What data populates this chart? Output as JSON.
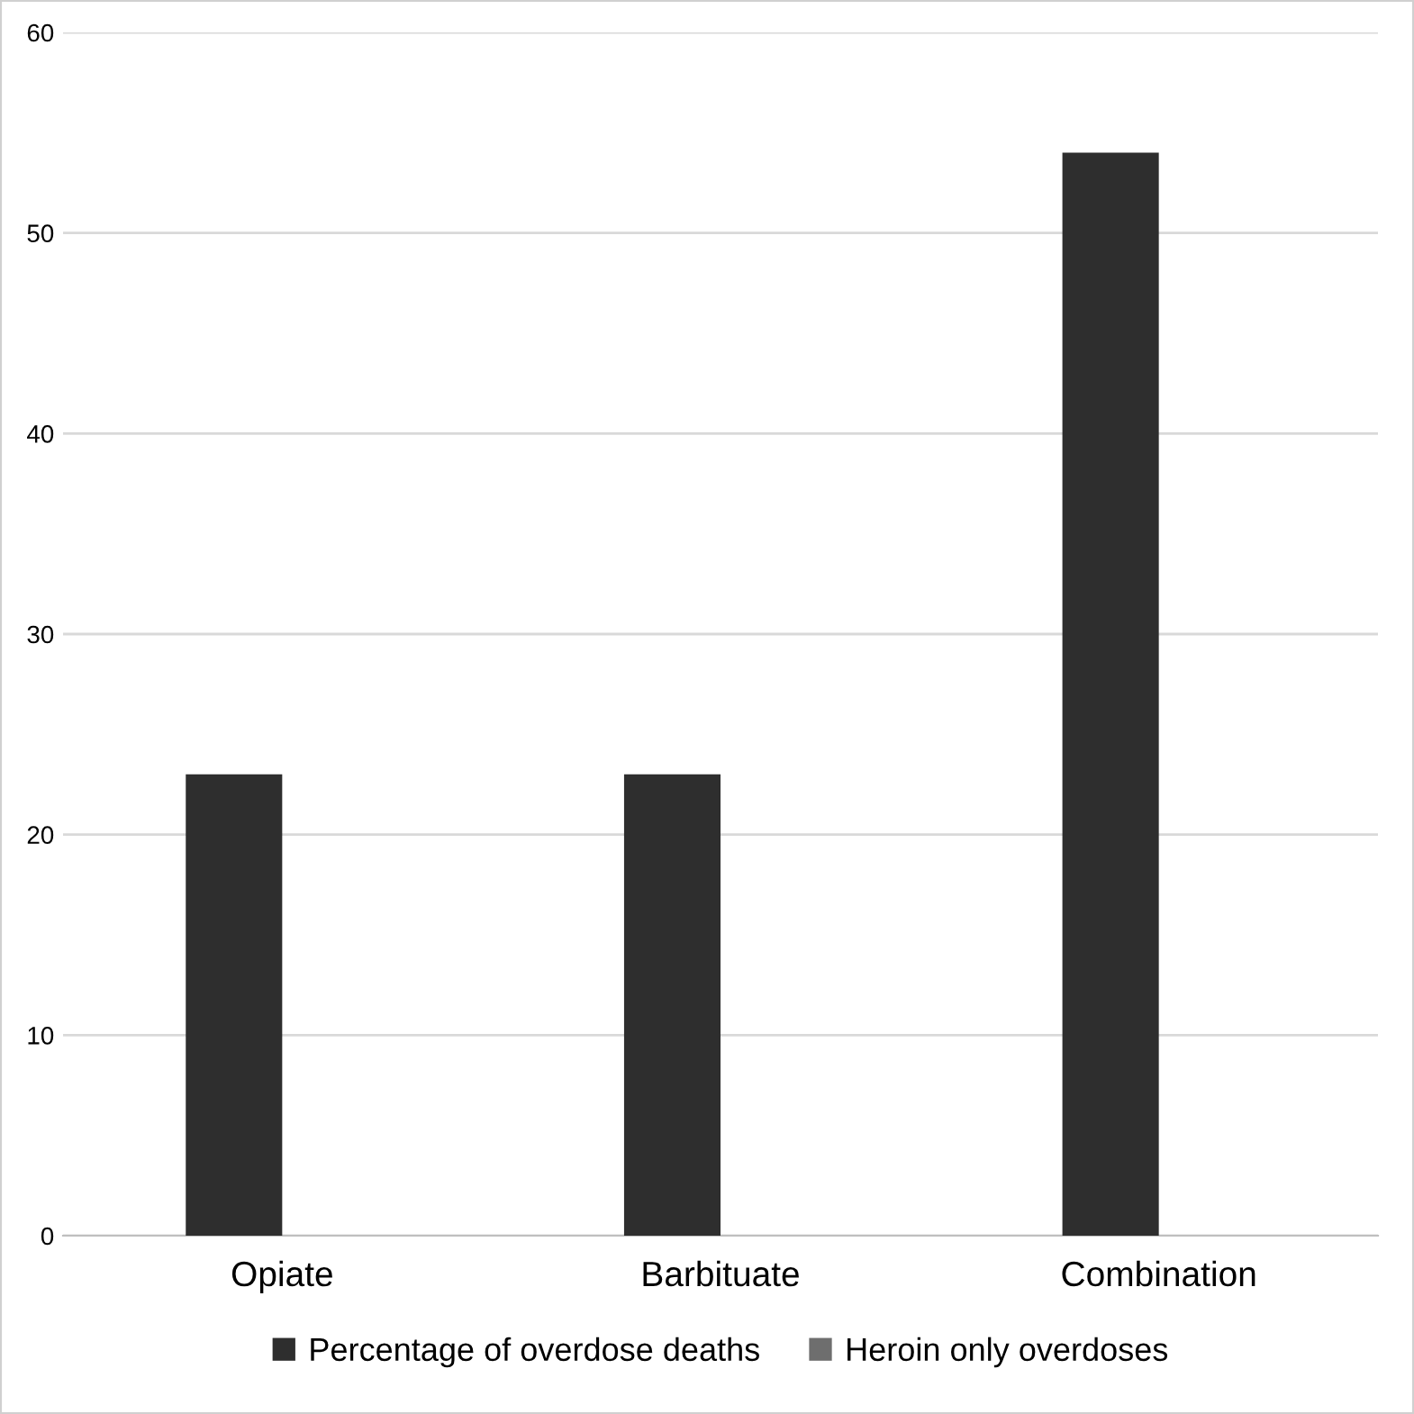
{
  "chart_data": {
    "type": "bar",
    "categories": [
      "Opiate",
      "Barbituate",
      "Combination"
    ],
    "series": [
      {
        "name": "Percentage of overdose deaths",
        "color": "#2e2e2e",
        "values": [
          23,
          23,
          54
        ]
      },
      {
        "name": "Heroin only overdoses",
        "color": "#6e6e6e",
        "values": [
          null,
          null,
          null
        ]
      }
    ],
    "ylim": [
      0,
      60
    ],
    "yticks": [
      0,
      10,
      20,
      30,
      40,
      50,
      60
    ],
    "grid": "y",
    "legend": "bottom"
  }
}
